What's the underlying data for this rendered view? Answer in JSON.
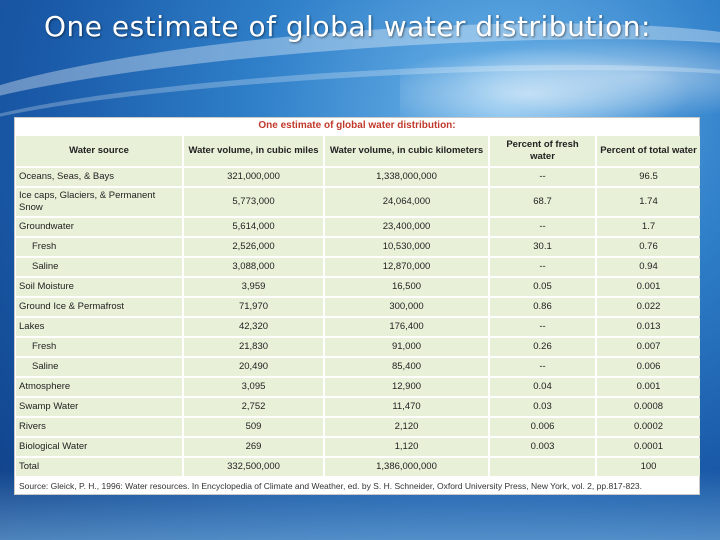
{
  "slide": {
    "title": "One estimate of global water distribution:"
  },
  "table": {
    "title": "One estimate of global water distribution:",
    "headers": [
      "Water source",
      "Water volume, in cubic miles",
      "Water volume, in cubic kilometers",
      "Percent of fresh water",
      "Percent of total water"
    ],
    "rows": [
      [
        "Oceans, Seas, & Bays",
        "321,000,000",
        "1,338,000,000",
        "--",
        "96.5"
      ],
      [
        "Ice caps, Glaciers, & Permanent Snow",
        "5,773,000",
        "24,064,000",
        "68.7",
        "1.74"
      ],
      [
        "Groundwater",
        "5,614,000",
        "23,400,000",
        "--",
        "1.7"
      ],
      [
        "Fresh",
        "2,526,000",
        "10,530,000",
        "30.1",
        "0.76"
      ],
      [
        "Saline",
        "3,088,000",
        "12,870,000",
        "--",
        "0.94"
      ],
      [
        "Soil Moisture",
        "3,959",
        "16,500",
        "0.05",
        "0.001"
      ],
      [
        "Ground Ice & Permafrost",
        "71,970",
        "300,000",
        "0.86",
        "0.022"
      ],
      [
        "Lakes",
        "42,320",
        "176,400",
        "--",
        "0.013"
      ],
      [
        "Fresh",
        "21,830",
        "91,000",
        "0.26",
        "0.007"
      ],
      [
        "Saline",
        "20,490",
        "85,400",
        "--",
        "0.006"
      ],
      [
        "Atmosphere",
        "3,095",
        "12,900",
        "0.04",
        "0.001"
      ],
      [
        "Swamp Water",
        "2,752",
        "11,470",
        "0.03",
        "0.0008"
      ],
      [
        "Rivers",
        "509",
        "2,120",
        "0.006",
        "0.0002"
      ],
      [
        "Biological Water",
        "269",
        "1,120",
        "0.003",
        "0.0001"
      ],
      [
        "Total",
        "332,500,000",
        "1,386,000,000",
        "",
        "100"
      ]
    ],
    "source": "Source: Gleick, P. H., 1996: Water resources. In Encyclopedia of Climate and Weather, ed. by S. H. Schneider, Oxford University Press, New York, vol. 2, pp.817-823."
  }
}
